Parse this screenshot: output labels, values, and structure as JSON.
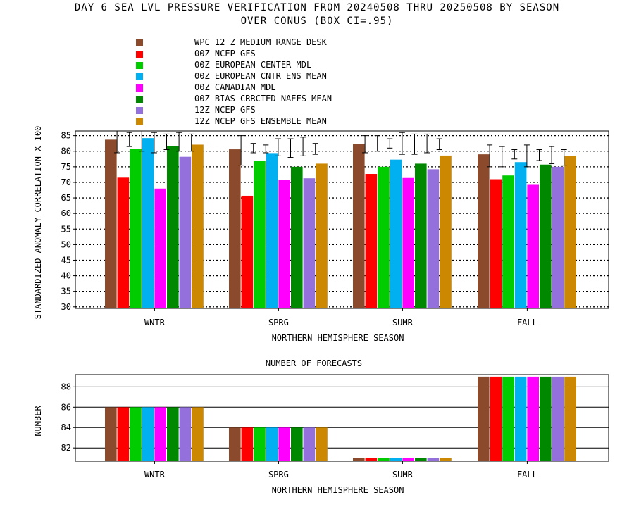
{
  "title_line1": "DAY 6 SEA LVL PRESSURE VERIFICATION FROM 20240508 THRU 20250508 BY SEASON",
  "title_line2": "OVER CONUS (BOX CI=.95)",
  "chart_data": [
    {
      "type": "bar",
      "title": "",
      "xlabel": "NORTHERN HEMISPHERE SEASON",
      "ylabel": "STANDARDIZED ANOMALY CORRELATION X 100",
      "ylim": [
        29.5,
        86.5
      ],
      "yticks": [
        30,
        35,
        40,
        45,
        50,
        55,
        60,
        65,
        70,
        75,
        80,
        85
      ],
      "grid": "dotted horizontal",
      "legend": "top-left, above plot",
      "categories": [
        "WNTR",
        "SPRG",
        "SUMR",
        "FALL"
      ],
      "series": [
        {
          "name": "WPC 12 Z MEDIUM RANGE DESK",
          "color": "#8b4a2b",
          "values": [
            83.7,
            80.6,
            82.4,
            79.0
          ]
        },
        {
          "name": "00Z NCEP GFS",
          "color": "#ff0000",
          "values": [
            71.5,
            65.7,
            72.7,
            71.0
          ]
        },
        {
          "name": "00Z EUROPEAN CENTER MDL",
          "color": "#00cc00",
          "values": [
            80.8,
            77.0,
            75.0,
            72.2
          ]
        },
        {
          "name": "00Z EUROPEAN CNTR ENS MEAN",
          "color": "#00b0f0",
          "values": [
            84.2,
            79.4,
            77.3,
            76.5
          ]
        },
        {
          "name": "00Z CANADIAN MDL",
          "color": "#ff00ff",
          "values": [
            68.0,
            70.8,
            71.4,
            69.2
          ]
        },
        {
          "name": "00Z BIAS CRRCTED NAEFS MEAN",
          "color": "#008800",
          "values": [
            81.6,
            75.0,
            76.0,
            75.7
          ]
        },
        {
          "name": "12Z NCEP GFS",
          "color": "#9370db",
          "values": [
            78.2,
            71.3,
            74.2,
            75.0
          ]
        },
        {
          "name": "12Z NCEP GFS ENSEMBLE MEAN",
          "color": "#cc8800",
          "values": [
            82.1,
            76.0,
            78.6,
            78.5
          ]
        }
      ],
      "confidence_intervals": {
        "description": "box CI=.95 error bars between adjacent series",
        "WNTR": [
          [
            79.5,
            86.5
          ],
          [
            81.5,
            86.0
          ],
          [
            80.0,
            86.5
          ],
          [
            79.5,
            86.0
          ],
          [
            80.5,
            85.5
          ],
          [
            80.0,
            86.0
          ],
          [
            80.0,
            85.5
          ]
        ],
        "SPRG": [
          [
            75.5,
            85.0
          ],
          [
            79.5,
            82.5
          ],
          [
            79.5,
            82.0
          ],
          [
            78.5,
            84.0
          ],
          [
            78.0,
            84.0
          ],
          [
            78.5,
            84.5
          ],
          [
            79.0,
            82.5
          ]
        ],
        "SUMR": [
          [
            79.5,
            85.0
          ],
          [
            80.0,
            85.0
          ],
          [
            81.0,
            84.0
          ],
          [
            79.0,
            86.0
          ],
          [
            79.0,
            85.5
          ],
          [
            79.5,
            85.5
          ],
          [
            80.5,
            84.0
          ]
        ],
        "FALL": [
          [
            75.0,
            82.0
          ],
          [
            75.0,
            81.5
          ],
          [
            77.5,
            80.5
          ],
          [
            75.0,
            82.0
          ],
          [
            77.0,
            80.5
          ],
          [
            76.0,
            81.5
          ],
          [
            75.5,
            80.5
          ]
        ]
      }
    },
    {
      "type": "bar",
      "title": "NUMBER OF FORECASTS",
      "xlabel": "NORTHERN HEMISPHERE SEASON",
      "ylabel": "NUMBER",
      "ylim": [
        80.7,
        89.2
      ],
      "yticks": [
        82,
        84,
        86,
        88
      ],
      "grid": "solid horizontal",
      "categories": [
        "WNTR",
        "SPRG",
        "SUMR",
        "FALL"
      ],
      "values": [
        86,
        84,
        81,
        89
      ]
    }
  ]
}
